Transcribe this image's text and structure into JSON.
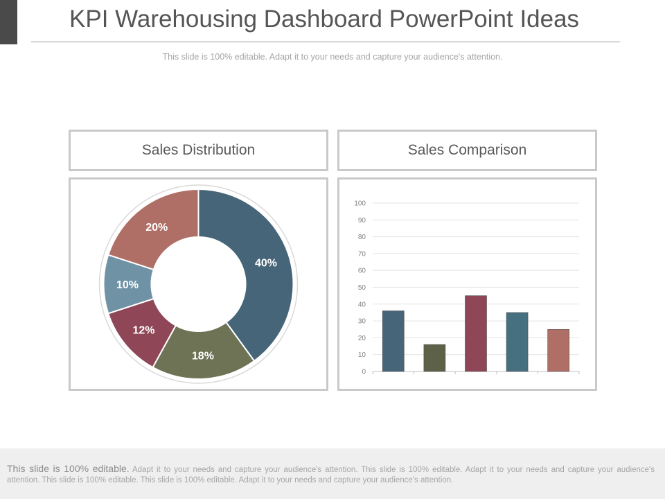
{
  "slide": {
    "title": "KPI Warehousing Dashboard PowerPoint Ideas",
    "subtitle": "This slide is 100% editable. Adapt it to your needs and capture your audience's attention."
  },
  "panels": {
    "left_title": "Sales Distribution",
    "right_title": "Sales Comparison"
  },
  "chart_data": [
    {
      "type": "pie",
      "subtype": "donut",
      "title": "",
      "labels": [
        "40%",
        "18%",
        "12%",
        "10%",
        "20%"
      ],
      "values": [
        40,
        18,
        12,
        10,
        20
      ],
      "colors": [
        "#466578",
        "#6e7355",
        "#8f4657",
        "#6f93a5",
        "#b06f66"
      ]
    },
    {
      "type": "bar",
      "title": "",
      "categories": [
        "",
        "",
        "",
        "",
        ""
      ],
      "values": [
        36,
        16,
        45,
        35,
        25
      ],
      "colors": [
        "#466578",
        "#5d6147",
        "#8f4657",
        "#466f80",
        "#b06f66"
      ],
      "ylim": [
        0,
        100
      ],
      "yticks": [
        0,
        10,
        20,
        30,
        40,
        50,
        60,
        70,
        80,
        90,
        100
      ],
      "grid": true,
      "xlabel": "",
      "ylabel": ""
    }
  ],
  "footer": {
    "lead": "This slide is 100% editable.",
    "body": "Adapt it to your needs and capture your audience's attention. This slide is 100% editable. Adapt it to your needs and capture your audience's attention. This slide is 100% editable. This slide is 100% editable. Adapt it to your needs and capture your audience's attention."
  }
}
